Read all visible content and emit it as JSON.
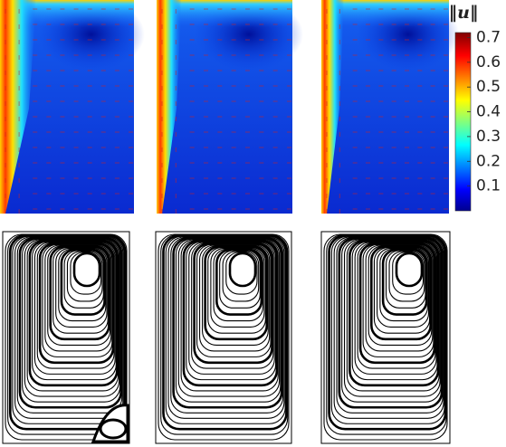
{
  "colorbar": {
    "label": "‖u‖",
    "range": [
      0,
      0.72
    ],
    "ticks": [
      0.1,
      0.2,
      0.3,
      0.4,
      0.5,
      0.6,
      0.7
    ]
  }
}
